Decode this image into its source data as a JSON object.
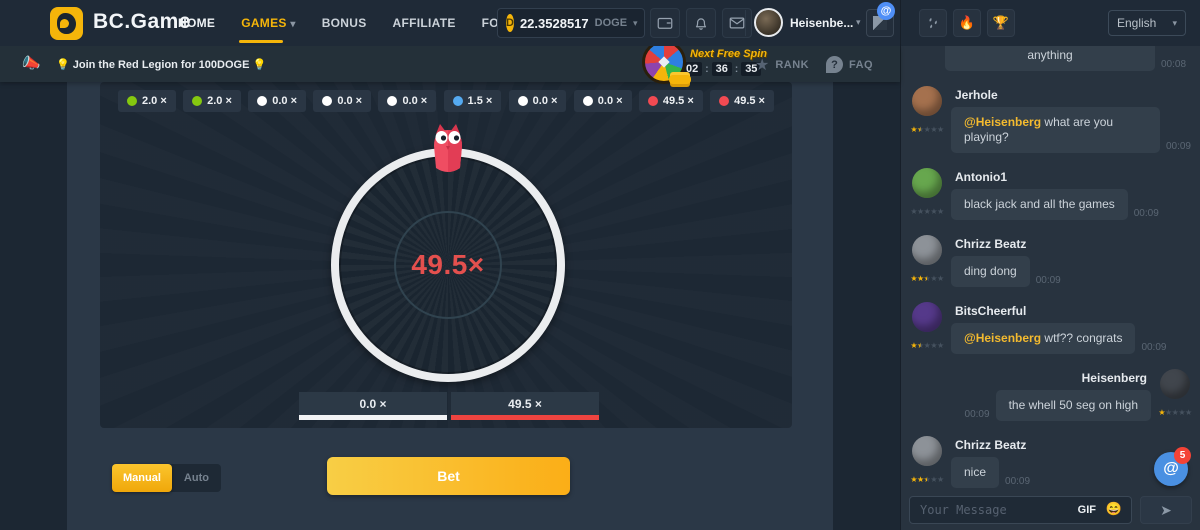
{
  "navbar": {
    "logo": "BC.Game",
    "items": [
      {
        "label": "HOME"
      },
      {
        "label": "GAMES"
      },
      {
        "label": "BONUS"
      },
      {
        "label": "AFFILIATE"
      },
      {
        "label": "FORUM"
      }
    ],
    "balance": {
      "coin_letter": "D",
      "amount": "22.3528517",
      "currency": "DOGE"
    },
    "username": "Heisenbe...",
    "mention_badge_at": "@"
  },
  "promobar": {
    "announcement": "Join the Red Legion for 100DOGE",
    "next_free_spin_label": "Next Free Spin",
    "timer": {
      "hours": "02",
      "minutes": "36",
      "seconds": "35"
    },
    "rank_label": "RANK",
    "faq_label": "FAQ"
  },
  "game": {
    "history": [
      {
        "value": "2.0 ×",
        "color": "#85c80f"
      },
      {
        "value": "2.0 ×",
        "color": "#85c80f"
      },
      {
        "value": "0.0 ×",
        "color": "#ffffff"
      },
      {
        "value": "0.0 ×",
        "color": "#ffffff"
      },
      {
        "value": "0.0 ×",
        "color": "#ffffff"
      },
      {
        "value": "1.5 ×",
        "color": "#55aaf0"
      },
      {
        "value": "0.0 ×",
        "color": "#ffffff"
      },
      {
        "value": "0.0 ×",
        "color": "#ffffff"
      },
      {
        "value": "49.5 ×",
        "color": "#f24a52"
      },
      {
        "value": "49.5 ×",
        "color": "#f24a52"
      }
    ],
    "wheel_result": "49.5×",
    "result_tabs": [
      {
        "label": "0.0 ×",
        "color": "#f2f3f5"
      },
      {
        "label": "49.5 ×",
        "color": "#ee4440"
      }
    ],
    "mode": {
      "manual": "Manual",
      "auto": "Auto"
    },
    "bet_label": "Bet"
  },
  "chat": {
    "language": "English",
    "partial_message": {
      "text": "anything",
      "time": "00:08"
    },
    "messages": [
      {
        "user": "Jerhole",
        "mention": "@Heisenberg",
        "text": " what are you playing?",
        "time": "00:09",
        "stars": 1.5,
        "avatar_color": "#a5714e"
      },
      {
        "user": "Antonio1",
        "mention": "",
        "text": "black jack and all the games",
        "time": "00:09",
        "stars": 0,
        "avatar_color": "#67a74e"
      },
      {
        "user": "Chrizz Beatz",
        "mention": "",
        "text": "ding dong",
        "time": "00:09",
        "stars": 2.5,
        "avatar_color": "#8d9298"
      },
      {
        "user": "BitsCheerful",
        "mention": "@Heisenberg",
        "text": " wtf?? congrats",
        "time": "00:09",
        "stars": 1.5,
        "avatar_color": "#55398a"
      },
      {
        "user": "Heisenberg",
        "mention": "",
        "text": "the whell 50 seg on high",
        "time": "00:09",
        "stars": 1,
        "avatar_color": "#41464d"
      },
      {
        "user": "Chrizz Beatz",
        "mention": "",
        "text": "nice",
        "time": "00:09",
        "stars": 2.5,
        "avatar_color": "#8d9298"
      }
    ],
    "mention_count": "5",
    "input_placeholder": "Your Message",
    "gif_label": "GIF"
  },
  "icons": {
    "megaphone": "📣",
    "bulb": "💡",
    "caret_down": "▾",
    "star": "★",
    "question": "?",
    "rain": "droplets",
    "fire": "🔥",
    "trophy": "🏆",
    "smiley": "😄",
    "send": "➤",
    "at": "@"
  }
}
